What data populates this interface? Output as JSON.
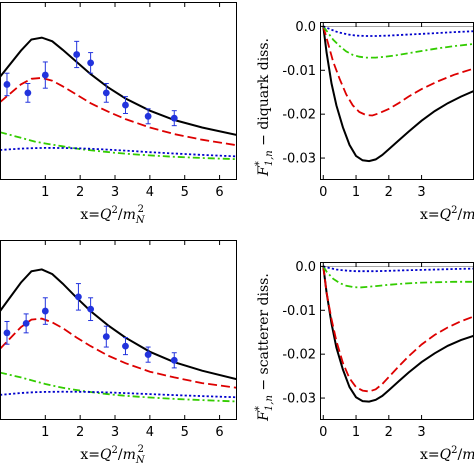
{
  "chart_data": [
    {
      "type": "line",
      "panel": "top-left",
      "xlabel": {
        "prefix": "x=",
        "var": "Q",
        "sup": "2",
        "sep": "/",
        "var2": "m",
        "sub2": "N",
        "sup2": "2"
      },
      "ylabel": "",
      "xlim": [
        -0.3,
        6.5
      ],
      "ylim": [
        -0.02,
        0.17
      ],
      "xticks": [
        "1",
        "2",
        "3",
        "4",
        "5",
        "6"
      ],
      "xtick_values": [
        1,
        2,
        3,
        4,
        5,
        6
      ],
      "series": [
        {
          "color": "#000000",
          "dash": "solid",
          "x": [
            -0.3,
            0.3,
            0.6,
            0.9,
            1.2,
            1.5,
            1.9,
            2.3,
            2.8,
            3.3,
            4.0,
            4.7,
            5.5,
            6.5
          ],
          "y": [
            0.09,
            0.118,
            0.13,
            0.132,
            0.128,
            0.119,
            0.106,
            0.093,
            0.079,
            0.067,
            0.054,
            0.044,
            0.036,
            0.028
          ]
        },
        {
          "color": "#dd0000",
          "dash": "longdash",
          "x": [
            -0.3,
            0.3,
            0.6,
            0.9,
            1.2,
            1.5,
            1.9,
            2.3,
            2.8,
            3.3,
            4.0,
            4.7,
            5.5,
            6.5
          ],
          "y": [
            0.063,
            0.082,
            0.088,
            0.089,
            0.086,
            0.08,
            0.071,
            0.062,
            0.053,
            0.045,
            0.036,
            0.029,
            0.023,
            0.017
          ]
        },
        {
          "color": "#33cc00",
          "dash": "dashdot",
          "x": [
            -0.3,
            0.3,
            0.7,
            1.0,
            1.5,
            2.0,
            2.5,
            3.0,
            3.5,
            4.0,
            4.7,
            5.5,
            6.5
          ],
          "y": [
            0.031,
            0.025,
            0.021,
            0.019,
            0.016,
            0.013,
            0.011,
            0.009,
            0.0075,
            0.0063,
            0.0048,
            0.0035,
            0.0022
          ]
        },
        {
          "color": "#0000cc",
          "dash": "dotted",
          "x": [
            -0.3,
            0.3,
            0.7,
            1.0,
            1.5,
            2.0,
            2.5,
            3.0,
            3.5,
            4.0,
            4.7,
            5.5,
            6.5
          ],
          "y": [
            0.012,
            0.0135,
            0.014,
            0.0143,
            0.0142,
            0.0137,
            0.013,
            0.012,
            0.011,
            0.0097,
            0.0083,
            0.0068,
            0.0052
          ]
        }
      ],
      "points": {
        "color": "#2233dd",
        "x": [
          -0.1,
          0.5,
          1.0,
          1.9,
          2.3,
          2.75,
          3.3,
          3.95,
          4.7
        ],
        "y": [
          0.082,
          0.073,
          0.092,
          0.114,
          0.105,
          0.073,
          0.06,
          0.048,
          0.046
        ],
        "err": [
          0.012,
          0.01,
          0.014,
          0.014,
          0.011,
          0.01,
          0.009,
          0.008,
          0.008
        ]
      }
    },
    {
      "type": "line",
      "panel": "top-right",
      "ylabel": {
        "var": "F",
        "sup": "*",
        "sub": "1,n",
        "text": " − diquark diss."
      },
      "xlabel": {
        "prefix": "x=",
        "var": "Q",
        "sup": "2",
        "sep": "/",
        "var2": "m"
      },
      "xlim": [
        -0.1,
        4.6
      ],
      "ylim": [
        -0.035,
        0.001
      ],
      "xticks": [
        "0",
        "1",
        "2",
        "3"
      ],
      "xtick_values": [
        0,
        1,
        2,
        3
      ],
      "yticks": [
        "0.0",
        "-0.01",
        "-0.02",
        "-0.03"
      ],
      "ytick_values": [
        0.0,
        -0.01,
        -0.02,
        -0.03
      ],
      "zero_line": true,
      "series": [
        {
          "color": "#000000",
          "dash": "solid",
          "x": [
            0,
            0.1,
            0.25,
            0.4,
            0.6,
            0.8,
            1.0,
            1.2,
            1.4,
            1.6,
            1.8,
            2.0,
            2.3,
            2.6,
            3.0,
            3.4,
            3.8,
            4.2,
            4.6
          ],
          "y": [
            0,
            -0.006,
            -0.013,
            -0.018,
            -0.023,
            -0.027,
            -0.0295,
            -0.0305,
            -0.0307,
            -0.0303,
            -0.0293,
            -0.028,
            -0.026,
            -0.024,
            -0.0215,
            -0.0193,
            -0.0175,
            -0.016,
            -0.0147
          ]
        },
        {
          "color": "#dd0000",
          "dash": "longdash",
          "x": [
            0,
            0.15,
            0.3,
            0.5,
            0.7,
            0.9,
            1.1,
            1.3,
            1.5,
            1.7,
            2.0,
            2.3,
            2.6,
            3.0,
            3.5,
            4.0,
            4.6
          ],
          "y": [
            0,
            -0.004,
            -0.008,
            -0.012,
            -0.0155,
            -0.018,
            -0.0195,
            -0.0202,
            -0.0203,
            -0.0198,
            -0.0188,
            -0.0175,
            -0.016,
            -0.0143,
            -0.0125,
            -0.011,
            -0.0096
          ]
        },
        {
          "color": "#33cc00",
          "dash": "dashdot",
          "x": [
            0,
            0.15,
            0.3,
            0.5,
            0.7,
            0.9,
            1.1,
            1.3,
            1.6,
            1.9,
            2.2,
            2.6,
            3.0,
            3.5,
            4.0,
            4.6
          ],
          "y": [
            0,
            -0.0015,
            -0.003,
            -0.0045,
            -0.0057,
            -0.0065,
            -0.0069,
            -0.0071,
            -0.0071,
            -0.0069,
            -0.0066,
            -0.0061,
            -0.0056,
            -0.005,
            -0.0045,
            -0.004
          ]
        },
        {
          "color": "#0000cc",
          "dash": "dotted",
          "x": [
            0,
            0.2,
            0.4,
            0.6,
            0.8,
            1.0,
            1.3,
            1.6,
            2.0,
            2.5,
            3.0,
            3.5,
            4.0,
            4.6
          ],
          "y": [
            0,
            -0.0006,
            -0.0012,
            -0.0016,
            -0.0019,
            -0.0021,
            -0.0022,
            -0.0022,
            -0.0021,
            -0.0019,
            -0.0017,
            -0.0015,
            -0.0013,
            -0.0011
          ]
        }
      ]
    },
    {
      "type": "line",
      "panel": "bottom-left",
      "xlabel": {
        "prefix": "x=",
        "var": "Q",
        "sup": "2",
        "sep": "/",
        "var2": "m",
        "sub2": "N",
        "sup2": "2"
      },
      "ylabel": "",
      "xlim": [
        -0.3,
        6.5
      ],
      "ylim": [
        -0.02,
        0.17
      ],
      "xticks": [
        "1",
        "2",
        "3",
        "4",
        "5",
        "6"
      ],
      "xtick_values": [
        1,
        2,
        3,
        4,
        5,
        6
      ],
      "series": [
        {
          "color": "#000000",
          "dash": "solid",
          "x": [
            -0.3,
            0.3,
            0.6,
            0.9,
            1.2,
            1.5,
            1.9,
            2.3,
            2.8,
            3.3,
            4.0,
            4.7,
            5.5,
            6.5
          ],
          "y": [
            0.095,
            0.125,
            0.137,
            0.139,
            0.134,
            0.124,
            0.109,
            0.095,
            0.08,
            0.067,
            0.052,
            0.041,
            0.032,
            0.023
          ]
        },
        {
          "color": "#dd0000",
          "dash": "longdash",
          "x": [
            -0.3,
            0.3,
            0.6,
            0.9,
            1.2,
            1.5,
            1.9,
            2.3,
            2.8,
            3.3,
            4.0,
            4.7,
            5.5,
            6.5
          ],
          "y": [
            0.055,
            0.078,
            0.086,
            0.087,
            0.083,
            0.077,
            0.067,
            0.058,
            0.048,
            0.04,
            0.031,
            0.025,
            0.019,
            0.014
          ]
        },
        {
          "color": "#33cc00",
          "dash": "dashdot",
          "x": [
            -0.3,
            0.3,
            0.7,
            1.0,
            1.5,
            2.0,
            2.5,
            3.0,
            3.5,
            4.0,
            4.7,
            5.5,
            6.5
          ],
          "y": [
            0.03,
            0.025,
            0.021,
            0.018,
            0.014,
            0.011,
            0.0085,
            0.0065,
            0.005,
            0.0037,
            0.0023,
            0.001,
            -0.0005
          ]
        },
        {
          "color": "#0000cc",
          "dash": "dotted",
          "x": [
            -0.3,
            0.3,
            0.7,
            1.0,
            1.5,
            2.0,
            2.5,
            3.0,
            3.5,
            4.0,
            4.7,
            5.5,
            6.5
          ],
          "y": [
            0.0065,
            0.0085,
            0.0093,
            0.0097,
            0.0099,
            0.0098,
            0.0094,
            0.0088,
            0.0081,
            0.0073,
            0.0063,
            0.0052,
            0.004
          ]
        }
      ],
      "points": {
        "color": "#2233dd",
        "x": [
          -0.1,
          0.45,
          1.0,
          1.95,
          2.3,
          2.75,
          3.3,
          3.95,
          4.7
        ],
        "y": [
          0.072,
          0.082,
          0.095,
          0.11,
          0.097,
          0.068,
          0.058,
          0.049,
          0.043
        ],
        "err": [
          0.012,
          0.01,
          0.014,
          0.014,
          0.012,
          0.011,
          0.009,
          0.008,
          0.008
        ]
      }
    },
    {
      "type": "line",
      "panel": "bottom-right",
      "ylabel": {
        "var": "F",
        "sup": "*",
        "sub": "1,n",
        "text": " − scatterer diss."
      },
      "xlabel": {
        "prefix": "x=",
        "var": "Q",
        "sup": "2",
        "sep": "/",
        "var2": "m"
      },
      "xlim": [
        -0.1,
        4.6
      ],
      "ylim": [
        -0.035,
        0.001
      ],
      "xticks": [
        "0",
        "1",
        "2",
        "3"
      ],
      "xtick_values": [
        0,
        1,
        2,
        3
      ],
      "yticks": [
        "0.0",
        "-0.01",
        "-0.02",
        "-0.03"
      ],
      "ytick_values": [
        0.0,
        -0.01,
        -0.02,
        -0.03
      ],
      "zero_line": true,
      "series": [
        {
          "color": "#000000",
          "dash": "solid",
          "x": [
            0,
            0.1,
            0.25,
            0.4,
            0.6,
            0.8,
            1.0,
            1.2,
            1.4,
            1.6,
            1.8,
            2.0,
            2.3,
            2.6,
            3.0,
            3.4,
            3.8,
            4.2,
            4.6
          ],
          "y": [
            0,
            -0.006,
            -0.013,
            -0.0185,
            -0.0235,
            -0.0275,
            -0.0298,
            -0.0307,
            -0.0308,
            -0.0304,
            -0.0295,
            -0.0282,
            -0.0262,
            -0.0242,
            -0.0218,
            -0.0198,
            -0.0181,
            -0.0168,
            -0.0158
          ]
        },
        {
          "color": "#dd0000",
          "dash": "longdash",
          "x": [
            0,
            0.1,
            0.25,
            0.4,
            0.6,
            0.8,
            1.0,
            1.2,
            1.4,
            1.6,
            1.8,
            2.0,
            2.3,
            2.6,
            3.0,
            3.4,
            3.8,
            4.2,
            4.6
          ],
          "y": [
            0,
            -0.006,
            -0.012,
            -0.017,
            -0.022,
            -0.0255,
            -0.0275,
            -0.0283,
            -0.0285,
            -0.028,
            -0.0268,
            -0.0252,
            -0.0228,
            -0.0205,
            -0.0178,
            -0.0156,
            -0.0139,
            -0.0125,
            -0.0114
          ]
        },
        {
          "color": "#33cc00",
          "dash": "dashdot",
          "x": [
            0,
            0.1,
            0.3,
            0.5,
            0.7,
            0.9,
            1.1,
            1.3,
            1.6,
            2.0,
            2.5,
            3.0,
            3.5,
            4.0,
            4.6
          ],
          "y": [
            0,
            -0.0012,
            -0.0028,
            -0.0038,
            -0.0044,
            -0.0047,
            -0.0048,
            -0.0047,
            -0.0045,
            -0.0042,
            -0.0039,
            -0.0037,
            -0.0036,
            -0.0035,
            -0.0035
          ]
        },
        {
          "color": "#0000cc",
          "dash": "dotted",
          "x": [
            0,
            0.2,
            0.4,
            0.6,
            0.8,
            1.0,
            1.3,
            1.6,
            2.0,
            2.5,
            3.0,
            3.5,
            4.0,
            4.6
          ],
          "y": [
            0,
            -0.0004,
            -0.0007,
            -0.0009,
            -0.001,
            -0.0011,
            -0.0011,
            -0.0011,
            -0.001,
            -0.0009,
            -0.0008,
            -0.0007,
            -0.0006,
            -0.0005
          ]
        }
      ]
    }
  ]
}
